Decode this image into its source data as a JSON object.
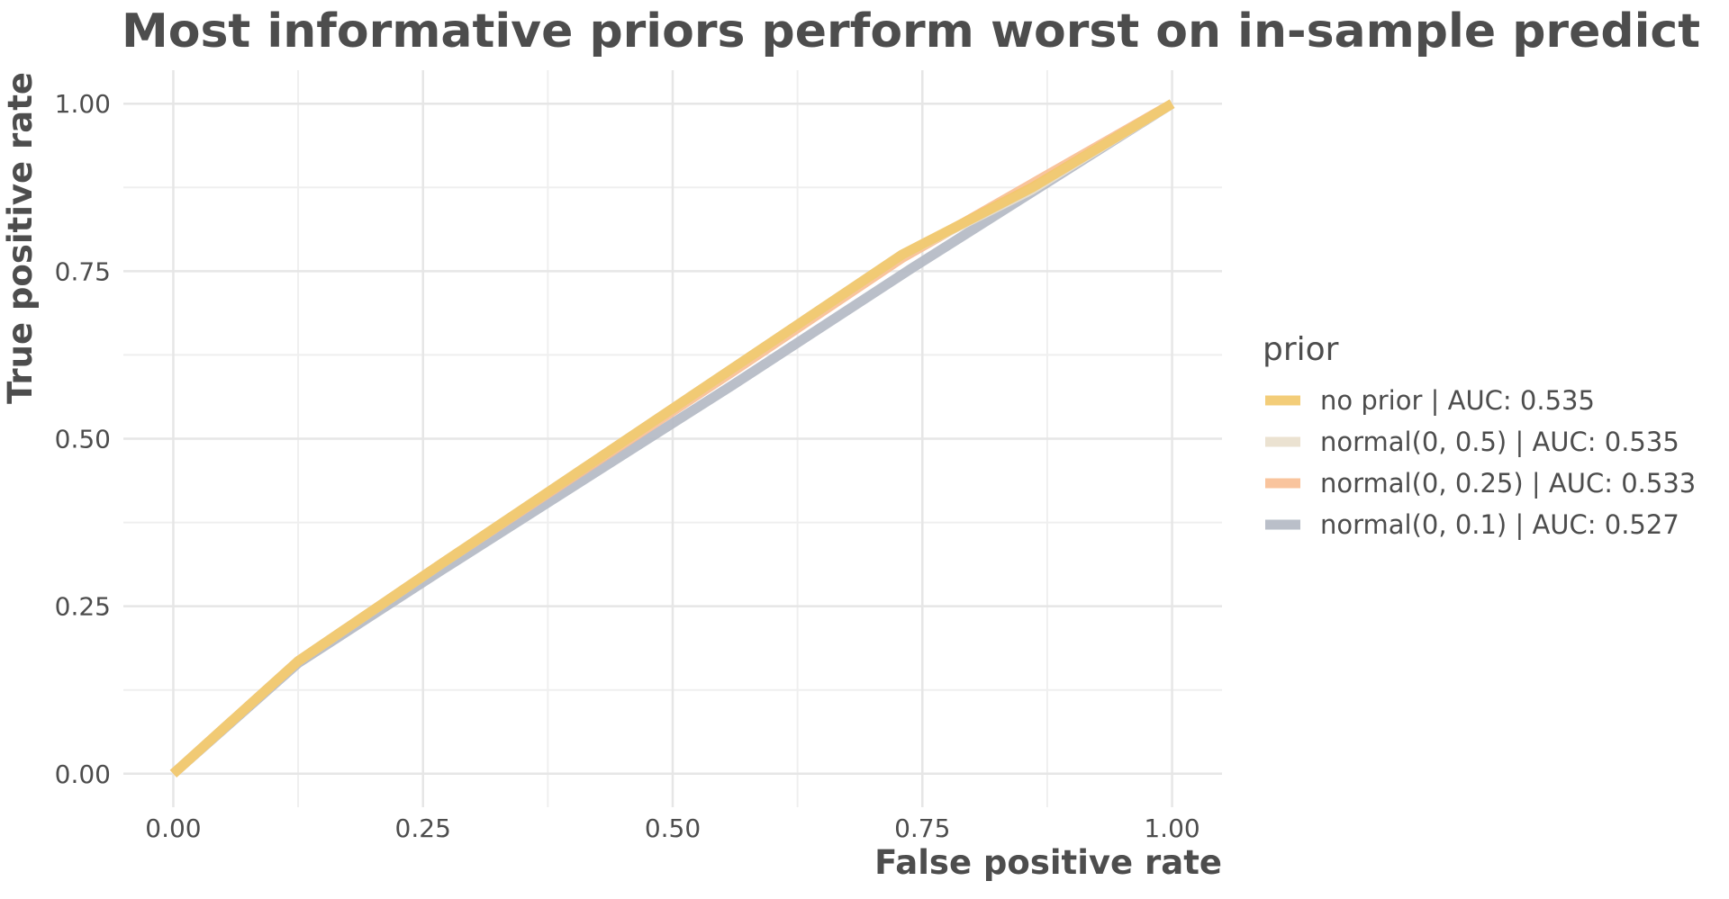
{
  "chart_data": {
    "type": "line",
    "title": "Most informative priors perform worst on in-sample predict",
    "xlabel": "False positive rate",
    "ylabel": "True positive rate",
    "xlim": [
      -0.05,
      1.05
    ],
    "ylim": [
      -0.05,
      1.05
    ],
    "x_ticks": [
      0,
      0.25,
      0.5,
      0.75,
      1
    ],
    "y_ticks": [
      0,
      0.25,
      0.5,
      0.75,
      1
    ],
    "x_tick_labels": [
      "0.00",
      "0.25",
      "0.50",
      "0.75",
      "1.00"
    ],
    "y_tick_labels": [
      "0.00",
      "0.25",
      "0.50",
      "0.75",
      "1.00"
    ],
    "grid": true,
    "legend": {
      "title": "prior",
      "position": "right"
    },
    "series": [
      {
        "name": "normal(0, 0.1) | AUC: 0.527",
        "color": "#b3b8c3",
        "x": [
          0,
          0.125,
          0.27,
          0.56,
          0.74,
          1
        ],
        "y": [
          0,
          0.165,
          0.305,
          0.58,
          0.755,
          1
        ]
      },
      {
        "name": "normal(0, 0.25) | AUC: 0.533",
        "color": "#f8be92",
        "x": [
          0,
          0.125,
          0.27,
          0.56,
          0.73,
          1
        ],
        "y": [
          0,
          0.168,
          0.315,
          0.6,
          0.77,
          1
        ]
      },
      {
        "name": "normal(0, 0.5) | AUC: 0.535",
        "color": "#e9dfcc",
        "x": [
          0,
          0.125,
          0.27,
          0.56,
          0.73,
          0.86,
          1
        ],
        "y": [
          0,
          0.168,
          0.315,
          0.605,
          0.775,
          0.872,
          1
        ]
      },
      {
        "name": "no prior | AUC: 0.535",
        "color": "#f2c86a",
        "x": [
          0,
          0.125,
          0.27,
          0.56,
          0.73,
          0.86,
          1
        ],
        "y": [
          0,
          0.168,
          0.315,
          0.605,
          0.775,
          0.875,
          1
        ]
      }
    ],
    "legend_order": [
      "no prior | AUC: 0.535",
      "normal(0, 0.5) | AUC: 0.535",
      "normal(0, 0.25) | AUC: 0.533",
      "normal(0, 0.1) | AUC: 0.527"
    ]
  }
}
